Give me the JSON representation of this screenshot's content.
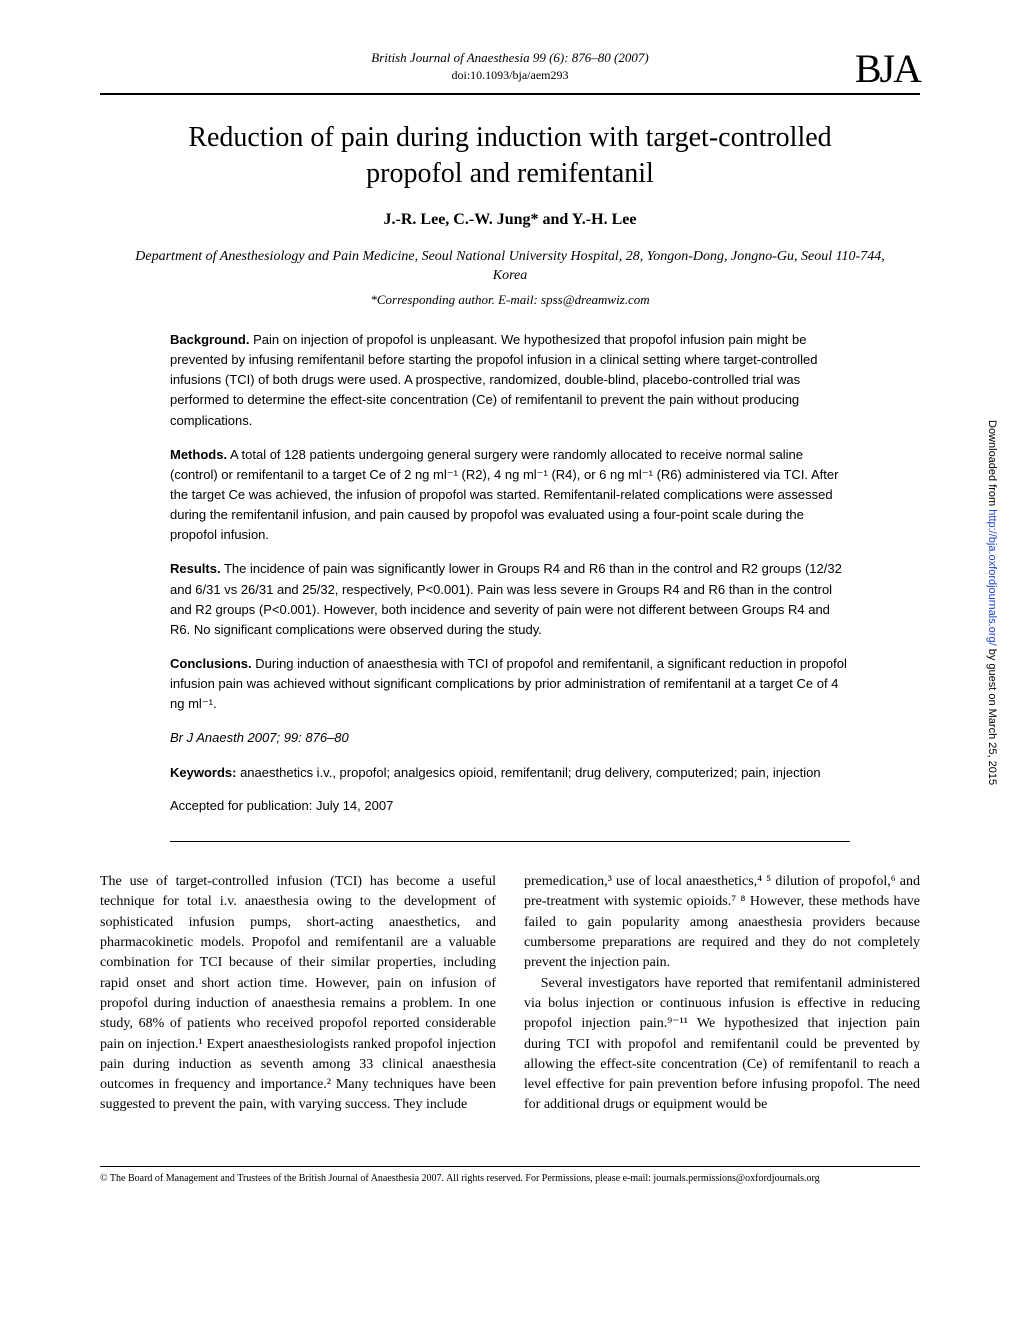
{
  "journal": {
    "header_line": "British Journal of Anaesthesia 99 (6): 876–80 (2007)",
    "doi": "doi:10.1093/bja/aem293",
    "logo": "BJA"
  },
  "article": {
    "title": "Reduction of pain during induction with target-controlled propofol and remifentanil",
    "authors": "J.-R. Lee, C.-W. Jung* and Y.-H. Lee",
    "affiliation": "Department of Anesthesiology and Pain Medicine, Seoul National University Hospital, 28, Yongon-Dong, Jongno-Gu, Seoul 110-744, Korea",
    "corresponding": "*Corresponding author. E-mail: spss@dreamwiz.com"
  },
  "abstract": {
    "background_head": "Background.",
    "background": " Pain on injection of propofol is unpleasant. We hypothesized that propofol infusion pain might be prevented by infusing remifentanil before starting the propofol infusion in a clinical setting where target-controlled infusions (TCI) of both drugs were used. A prospective, randomized, double-blind, placebo-controlled trial was performed to determine the effect-site concentration (Ce) of remifentanil to prevent the pain without producing complications.",
    "methods_head": "Methods.",
    "methods": " A total of 128 patients undergoing general surgery were randomly allocated to receive normal saline (control) or remifentanil to a target Ce of 2 ng ml⁻¹ (R2), 4 ng ml⁻¹ (R4), or 6 ng ml⁻¹ (R6) administered via TCI. After the target Ce was achieved, the infusion of propofol was started. Remifentanil-related complications were assessed during the remifentanil infusion, and pain caused by propofol was evaluated using a four-point scale during the propofol infusion.",
    "results_head": "Results.",
    "results": " The incidence of pain was significantly lower in Groups R4 and R6 than in the control and R2 groups (12/32 and 6/31 vs 26/31 and 25/32, respectively, P<0.001). Pain was less severe in Groups R4 and R6 than in the control and R2 groups (P<0.001). However, both incidence and severity of pain were not different between Groups R4 and R6. No significant complications were observed during the study.",
    "conclusions_head": "Conclusions.",
    "conclusions": " During induction of anaesthesia with TCI of propofol and remifentanil, a significant reduction in propofol infusion pain was achieved without significant complications by prior administration of remifentanil at a target Ce of 4 ng ml⁻¹.",
    "citation": "Br J Anaesth 2007; 99: 876–80",
    "keywords_head": "Keywords:",
    "keywords": " anaesthetics i.v., propofol; analgesics opioid, remifentanil; drug delivery, computerized; pain, injection",
    "accepted": "Accepted for publication: July 14, 2007"
  },
  "body": {
    "col1": "The use of target-controlled infusion (TCI) has become a useful technique for total i.v. anaesthesia owing to the development of sophisticated infusion pumps, short-acting anaesthetics, and pharmacokinetic models. Propofol and remifentanil are a valuable combination for TCI because of their similar properties, including rapid onset and short action time. However, pain on infusion of propofol during induction of anaesthesia remains a problem. In one study, 68% of patients who received propofol reported considerable pain on injection.¹ Expert anaesthesiologists ranked propofol injection pain during induction as seventh among 33 clinical anaesthesia outcomes in frequency and importance.² Many techniques have been suggested to prevent the pain, with varying success. They include",
    "col2_p1": "premedication,³ use of local anaesthetics,⁴ ⁵ dilution of propofol,⁶ and pre-treatment with systemic opioids.⁷ ⁸ However, these methods have failed to gain popularity among anaesthesia providers because cumbersome preparations are required and they do not completely prevent the injection pain.",
    "col2_p2": "Several investigators have reported that remifentanil administered via bolus injection or continuous infusion is effective in reducing propofol injection pain.⁹⁻¹¹ We hypothesized that injection pain during TCI with propofol and remifentanil could be prevented by allowing the effect-site concentration (Ce) of remifentanil to reach a level effective for pain prevention before infusing propofol. The need for additional drugs or equipment would be"
  },
  "footer": {
    "copyright": "© The Board of Management and Trustees of the British Journal of Anaesthesia 2007. All rights reserved. For Permissions, please e-mail: journals.permissions@oxfordjournals.org"
  },
  "side": {
    "prefix": "Downloaded from ",
    "link": "http://bja.oxfordjournals.org/",
    "suffix": " by guest on March 25, 2015"
  }
}
